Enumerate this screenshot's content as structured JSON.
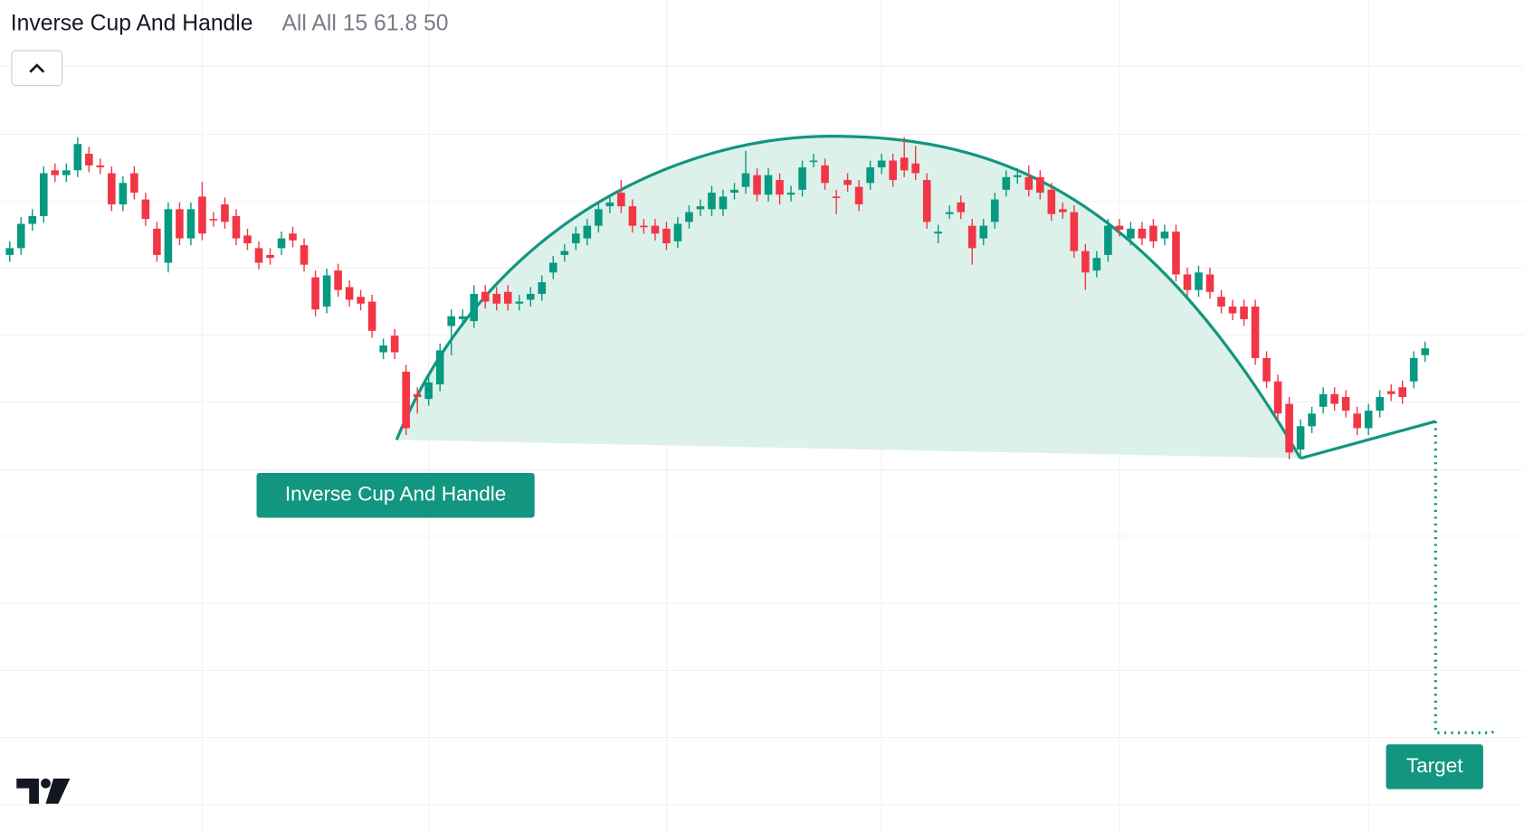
{
  "chart_data": {
    "type": "candlestick",
    "title": "Inverse Cup And Handle",
    "parameters": "All All 15 61.8 50",
    "annotations": {
      "pattern": "Inverse Cup And Handle",
      "target": "Target"
    },
    "up_color": "#089981",
    "down_color": "#f23645",
    "ylim": [
      0,
      855
    ],
    "open": [
      593,
      600,
      625,
      633,
      680,
      675,
      680,
      697,
      685,
      677,
      645,
      677,
      650,
      620,
      585,
      640,
      610,
      653,
      630,
      645,
      633,
      613,
      600,
      593,
      600,
      615,
      603,
      570,
      540,
      577,
      560,
      550,
      545,
      493,
      510,
      473,
      450,
      445,
      460,
      520,
      527,
      525,
      555,
      553,
      555,
      543,
      547,
      553,
      575,
      593,
      605,
      610,
      623,
      643,
      657,
      643,
      623,
      623,
      620,
      607,
      627,
      640,
      640,
      640,
      657,
      663,
      675,
      655,
      670,
      655,
      660,
      690,
      685,
      653,
      670,
      663,
      667,
      683,
      690,
      693,
      687,
      670,
      615,
      635,
      647,
      623,
      610,
      627,
      660,
      673,
      673,
      673,
      660,
      640,
      637,
      597,
      577,
      593,
      623,
      610,
      620,
      623,
      610,
      617,
      573,
      557,
      573,
      550,
      540,
      540,
      540,
      487,
      463,
      440,
      393,
      417,
      437,
      450,
      447,
      430,
      415,
      433,
      453,
      457,
      463,
      490
    ],
    "high": [
      607,
      632,
      640,
      684,
      687,
      687,
      714,
      704,
      692,
      684,
      674,
      684,
      657,
      627,
      647,
      647,
      647,
      668,
      637,
      652,
      640,
      620,
      607,
      600,
      617,
      622,
      610,
      577,
      579,
      584,
      567,
      557,
      552,
      507,
      517,
      480,
      457,
      469,
      502,
      537,
      537,
      562,
      562,
      560,
      562,
      552,
      560,
      572,
      592,
      604,
      622,
      630,
      647,
      654,
      670,
      650,
      630,
      630,
      627,
      632,
      644,
      650,
      664,
      660,
      667,
      700,
      682,
      682,
      677,
      664,
      690,
      697,
      692,
      660,
      677,
      670,
      690,
      697,
      697,
      714,
      705,
      677,
      624,
      644,
      654,
      630,
      630,
      657,
      680,
      682,
      685,
      680,
      667,
      647,
      644,
      604,
      597,
      630,
      630,
      627,
      627,
      630,
      624,
      624,
      580,
      582,
      580,
      557,
      547,
      547,
      547,
      494,
      470,
      447,
      424,
      437,
      457,
      457,
      454,
      437,
      440,
      454,
      460,
      464,
      494,
      504
    ],
    "low": [
      586,
      593,
      618,
      626,
      668,
      668,
      673,
      678,
      676,
      638,
      638,
      650,
      623,
      586,
      575,
      603,
      603,
      608,
      622,
      620,
      603,
      598,
      578,
      583,
      593,
      601,
      576,
      530,
      533,
      550,
      540,
      536,
      508,
      486,
      486,
      408,
      430,
      438,
      453,
      490,
      520,
      518,
      538,
      536,
      536,
      536,
      540,
      546,
      568,
      586,
      598,
      603,
      616,
      636,
      636,
      616,
      615,
      608,
      598,
      600,
      620,
      633,
      633,
      633,
      650,
      656,
      648,
      648,
      645,
      648,
      653,
      683,
      660,
      635,
      658,
      638,
      660,
      676,
      663,
      673,
      670,
      620,
      605,
      630,
      630,
      583,
      603,
      620,
      653,
      666,
      653,
      650,
      628,
      630,
      590,
      557,
      570,
      586,
      612,
      603,
      603,
      600,
      603,
      566,
      550,
      550,
      548,
      533,
      526,
      520,
      480,
      456,
      423,
      383,
      386,
      410,
      430,
      433,
      426,
      408,
      408,
      426,
      443,
      440,
      456,
      483
    ],
    "close": [
      600,
      625,
      633,
      677,
      675,
      680,
      707,
      685,
      683,
      645,
      667,
      657,
      630,
      593,
      640,
      610,
      640,
      615,
      629,
      627,
      610,
      605,
      585,
      590,
      610,
      608,
      583,
      537,
      572,
      557,
      547,
      543,
      515,
      500,
      493,
      415,
      447,
      462,
      495,
      530,
      530,
      553,
      545,
      543,
      543,
      545,
      553,
      565,
      585,
      597,
      615,
      623,
      640,
      647,
      643,
      623,
      622,
      615,
      605,
      625,
      637,
      643,
      657,
      653,
      660,
      677,
      655,
      675,
      655,
      657,
      683,
      690,
      667,
      652,
      665,
      645,
      683,
      690,
      670,
      680,
      677,
      627,
      617,
      637,
      637,
      600,
      623,
      650,
      673,
      675,
      660,
      657,
      635,
      637,
      597,
      575,
      590,
      623,
      619,
      620,
      610,
      607,
      617,
      573,
      557,
      575,
      555,
      540,
      533,
      527,
      487,
      463,
      430,
      390,
      417,
      430,
      450,
      440,
      433,
      415,
      433,
      447,
      450,
      447,
      487,
      497
    ]
  }
}
